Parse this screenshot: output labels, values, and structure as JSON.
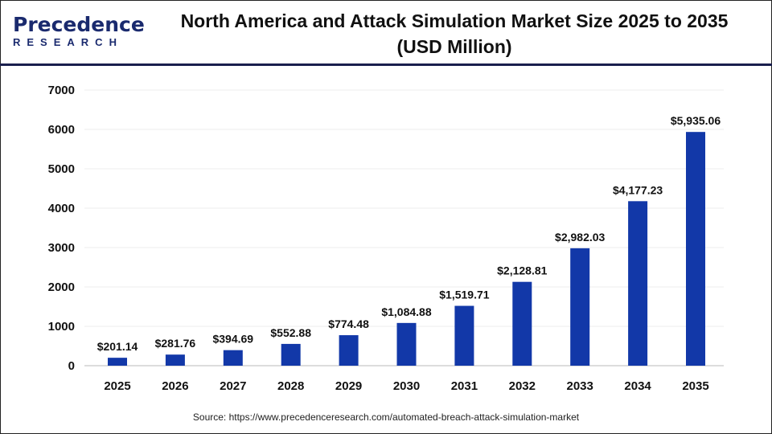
{
  "logo": {
    "line1": "Precedence",
    "line2": "RESEARCH"
  },
  "title_line1": "North America and Attack Simulation Market Size 2025 to 2035",
  "title_line2": "(USD Million)",
  "source": "Source: https://www.precedenceresearch.com/automated-breach-attack-simulation-market",
  "chart_data": {
    "type": "bar",
    "title": "North America and Attack Simulation Market Size 2025 to 2035 (USD Million)",
    "categories": [
      "2025",
      "2026",
      "2027",
      "2028",
      "2029",
      "2030",
      "2031",
      "2032",
      "2033",
      "2034",
      "2035"
    ],
    "values": [
      201.14,
      281.76,
      394.69,
      552.88,
      774.48,
      1084.88,
      1519.71,
      2128.81,
      2982.03,
      4177.23,
      5935.06
    ],
    "data_labels": [
      "$201.14",
      "$281.76",
      "$394.69",
      "$552.88",
      "$774.48",
      "$1,084.88",
      "$1,519.71",
      "$2,128.81",
      "$2,982.03",
      "$4,177.23",
      "$5,935.06"
    ],
    "yticks": [
      0,
      1000,
      2000,
      3000,
      4000,
      5000,
      6000,
      7000
    ],
    "ylim": [
      0,
      7000
    ],
    "grid": true,
    "bar_color": "#1238a8"
  }
}
